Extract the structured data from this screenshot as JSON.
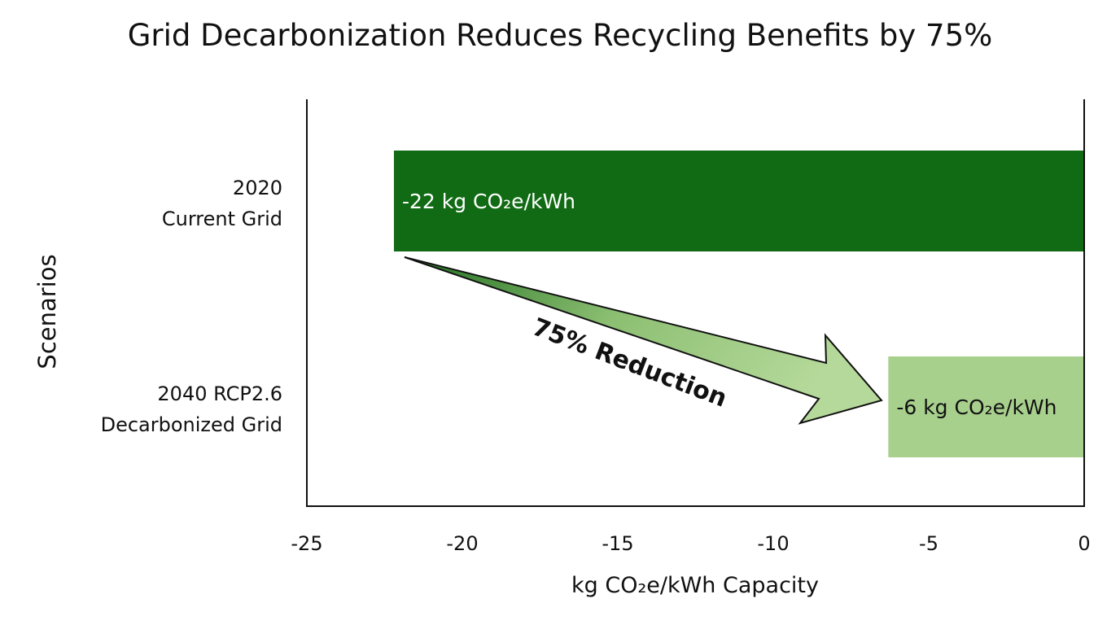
{
  "chart_data": {
    "type": "bar",
    "orientation": "horizontal",
    "title": "Grid Decarbonization Reduces Recycling Benefits by 75%",
    "xlabel": "kg CO₂e/kWh Capacity",
    "ylabel": "Scenarios",
    "xlim": [
      -25,
      0
    ],
    "xticks": [
      -25,
      -20,
      -15,
      -10,
      -5,
      0
    ],
    "grid": false,
    "categories": [
      [
        "2020",
        "Current Grid"
      ],
      [
        "2040 RCP2.6",
        "Decarbonized Grid"
      ]
    ],
    "values": [
      -22.2,
      -6.3
    ],
    "data_labels": [
      "-22 kg CO₂e/kWh",
      "-6 kg CO₂e/kWh"
    ],
    "colors": [
      "#116b14",
      "#a8d08d"
    ],
    "label_colors": [
      "#ffffff",
      "#111111"
    ],
    "annotation": {
      "text": "75% Reduction",
      "from_category": 0,
      "to_category": 1
    }
  }
}
